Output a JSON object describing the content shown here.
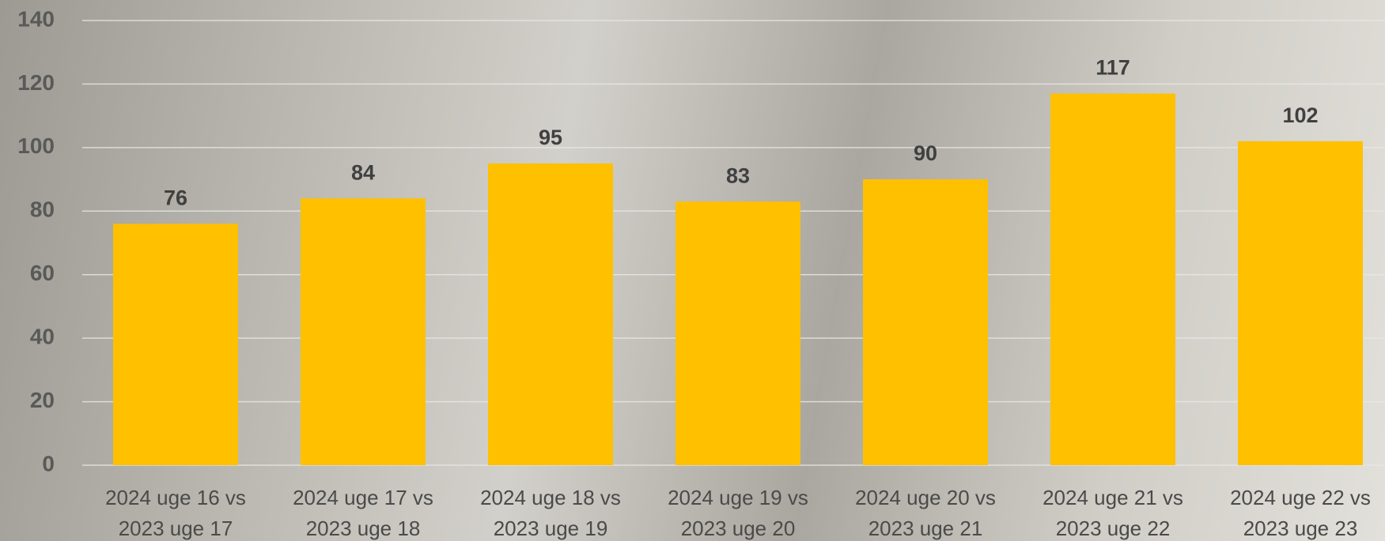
{
  "chart_data": {
    "type": "bar",
    "categories": [
      "2024 uge 16 vs 2023 uge 17",
      "2024 uge 17 vs 2023 uge 18",
      "2024 uge 18 vs 2023 uge 19",
      "2024 uge 19 vs 2023 uge 20",
      "2024 uge 20 vs 2023 uge 21",
      "2024 uge 21 vs 2023 uge 22",
      "2024 uge 22 vs 2023 uge 23"
    ],
    "values": [
      76,
      84,
      95,
      83,
      90,
      117,
      102
    ],
    "color": "#ffc000",
    "ylim": [
      0,
      140
    ],
    "yticks": [
      0,
      20,
      40,
      60,
      80,
      100,
      120,
      140
    ],
    "grid": true
  }
}
